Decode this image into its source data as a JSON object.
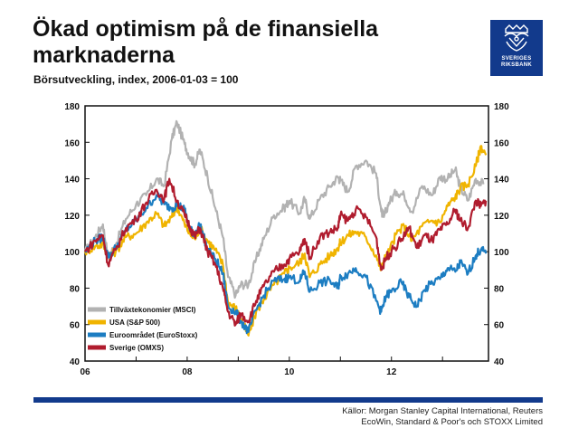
{
  "header": {
    "title": "Ökad optimism på de finansiella marknaderna",
    "subtitle": "Börsutveckling, index, 2006-01-03 = 100"
  },
  "logo": {
    "line1": "SVERIGES",
    "line2": "RIKSBANK",
    "icon": "crown-crest-icon"
  },
  "footer": {
    "source_line1": "Källor: Morgan Stanley Capital International, Reuters",
    "source_line2": "EcoWin, Standard & Poor's och STOXX Limited"
  },
  "chart_data": {
    "type": "line",
    "x_tick_labels": [
      "06",
      "08",
      "10",
      "12"
    ],
    "xlim": [
      2006.0,
      2013.9
    ],
    "ylim": [
      40,
      180
    ],
    "yticks": [
      40,
      60,
      80,
      100,
      120,
      140,
      160,
      180
    ],
    "right_axis": true,
    "grid": false,
    "legend_position": "bottom-left",
    "series": [
      {
        "name": "Tillväxtekonomier (MSCI)",
        "color": "#b2b2b2",
        "points": [
          [
            2006.0,
            100
          ],
          [
            2006.2,
            108
          ],
          [
            2006.35,
            115
          ],
          [
            2006.45,
            97
          ],
          [
            2006.6,
            104
          ],
          [
            2006.8,
            118
          ],
          [
            2007.0,
            126
          ],
          [
            2007.2,
            131
          ],
          [
            2007.4,
            140
          ],
          [
            2007.55,
            136
          ],
          [
            2007.7,
            162
          ],
          [
            2007.8,
            171
          ],
          [
            2007.95,
            159
          ],
          [
            2008.05,
            152
          ],
          [
            2008.15,
            148
          ],
          [
            2008.25,
            156
          ],
          [
            2008.4,
            141
          ],
          [
            2008.55,
            124
          ],
          [
            2008.7,
            108
          ],
          [
            2008.8,
            86
          ],
          [
            2008.95,
            76
          ],
          [
            2009.05,
            82
          ],
          [
            2009.2,
            82
          ],
          [
            2009.35,
            96
          ],
          [
            2009.5,
            107
          ],
          [
            2009.7,
            120
          ],
          [
            2009.9,
            124
          ],
          [
            2010.0,
            128
          ],
          [
            2010.2,
            121
          ],
          [
            2010.3,
            129
          ],
          [
            2010.4,
            118
          ],
          [
            2010.6,
            129
          ],
          [
            2010.8,
            136
          ],
          [
            2010.95,
            141
          ],
          [
            2011.0,
            139
          ],
          [
            2011.15,
            133
          ],
          [
            2011.3,
            147
          ],
          [
            2011.5,
            150
          ],
          [
            2011.7,
            143
          ],
          [
            2011.8,
            122
          ],
          [
            2011.85,
            119
          ],
          [
            2011.95,
            127
          ],
          [
            2012.1,
            133
          ],
          [
            2012.25,
            131
          ],
          [
            2012.4,
            122
          ],
          [
            2012.6,
            136
          ],
          [
            2012.8,
            131
          ],
          [
            2012.95,
            141
          ],
          [
            2013.1,
            140
          ],
          [
            2013.25,
            145
          ],
          [
            2013.35,
            135
          ],
          [
            2013.5,
            128
          ],
          [
            2013.65,
            140
          ],
          [
            2013.8,
            137
          ]
        ]
      },
      {
        "name": "USA (S&P 500)",
        "color": "#f0b400",
        "points": [
          [
            2006.0,
            100
          ],
          [
            2006.2,
            103
          ],
          [
            2006.35,
            104
          ],
          [
            2006.45,
            98
          ],
          [
            2006.6,
            100
          ],
          [
            2006.8,
            108
          ],
          [
            2007.0,
            110
          ],
          [
            2007.2,
            116
          ],
          [
            2007.4,
            121
          ],
          [
            2007.55,
            114
          ],
          [
            2007.7,
            119
          ],
          [
            2007.8,
            125
          ],
          [
            2007.95,
            115
          ],
          [
            2008.05,
            110
          ],
          [
            2008.15,
            107
          ],
          [
            2008.25,
            113
          ],
          [
            2008.4,
            106
          ],
          [
            2008.55,
            101
          ],
          [
            2008.7,
            93
          ],
          [
            2008.8,
            72
          ],
          [
            2008.95,
            69
          ],
          [
            2009.05,
            63
          ],
          [
            2009.2,
            54
          ],
          [
            2009.35,
            67
          ],
          [
            2009.5,
            74
          ],
          [
            2009.7,
            82
          ],
          [
            2009.9,
            88
          ],
          [
            2010.0,
            91
          ],
          [
            2010.2,
            94
          ],
          [
            2010.3,
            99
          ],
          [
            2010.4,
            86
          ],
          [
            2010.6,
            93
          ],
          [
            2010.8,
            98
          ],
          [
            2010.95,
            102
          ],
          [
            2011.0,
            105
          ],
          [
            2011.15,
            109
          ],
          [
            2011.3,
            111
          ],
          [
            2011.5,
            108
          ],
          [
            2011.7,
            98
          ],
          [
            2011.8,
            90
          ],
          [
            2011.85,
            95
          ],
          [
            2011.95,
            100
          ],
          [
            2012.1,
            110
          ],
          [
            2012.25,
            114
          ],
          [
            2012.4,
            106
          ],
          [
            2012.6,
            114
          ],
          [
            2012.8,
            117
          ],
          [
            2012.95,
            116
          ],
          [
            2013.1,
            125
          ],
          [
            2013.25,
            130
          ],
          [
            2013.35,
            135
          ],
          [
            2013.5,
            137
          ],
          [
            2013.65,
            147
          ],
          [
            2013.75,
            158
          ],
          [
            2013.85,
            153
          ]
        ]
      },
      {
        "name": "Euroområdet (EuroStoxx)",
        "color": "#1c7dc2",
        "points": [
          [
            2006.0,
            100
          ],
          [
            2006.2,
            106
          ],
          [
            2006.35,
            108
          ],
          [
            2006.45,
            97
          ],
          [
            2006.6,
            102
          ],
          [
            2006.8,
            112
          ],
          [
            2007.0,
            117
          ],
          [
            2007.2,
            124
          ],
          [
            2007.4,
            131
          ],
          [
            2007.55,
            126
          ],
          [
            2007.7,
            124
          ],
          [
            2007.8,
            126
          ],
          [
            2007.95,
            123
          ],
          [
            2008.05,
            112
          ],
          [
            2008.15,
            110
          ],
          [
            2008.25,
            115
          ],
          [
            2008.4,
            101
          ],
          [
            2008.55,
            96
          ],
          [
            2008.7,
            88
          ],
          [
            2008.8,
            70
          ],
          [
            2008.95,
            67
          ],
          [
            2009.05,
            62
          ],
          [
            2009.2,
            56
          ],
          [
            2009.35,
            68
          ],
          [
            2009.5,
            76
          ],
          [
            2009.7,
            84
          ],
          [
            2009.9,
            85
          ],
          [
            2010.0,
            86
          ],
          [
            2010.2,
            84
          ],
          [
            2010.3,
            89
          ],
          [
            2010.4,
            78
          ],
          [
            2010.6,
            83
          ],
          [
            2010.8,
            84
          ],
          [
            2010.95,
            80
          ],
          [
            2011.0,
            86
          ],
          [
            2011.15,
            88
          ],
          [
            2011.3,
            91
          ],
          [
            2011.5,
            86
          ],
          [
            2011.7,
            73
          ],
          [
            2011.8,
            67
          ],
          [
            2011.9,
            76
          ],
          [
            2012.0,
            78
          ],
          [
            2012.2,
            83
          ],
          [
            2012.35,
            75
          ],
          [
            2012.5,
            70
          ],
          [
            2012.65,
            79
          ],
          [
            2012.8,
            83
          ],
          [
            2012.95,
            85
          ],
          [
            2013.1,
            91
          ],
          [
            2013.25,
            89
          ],
          [
            2013.35,
            94
          ],
          [
            2013.5,
            88
          ],
          [
            2013.65,
            98
          ],
          [
            2013.75,
            101
          ],
          [
            2013.85,
            99
          ]
        ]
      },
      {
        "name": "Sverige (OMXS)",
        "color": "#b01c2e",
        "points": [
          [
            2006.0,
            100
          ],
          [
            2006.2,
            106
          ],
          [
            2006.35,
            109
          ],
          [
            2006.45,
            93
          ],
          [
            2006.6,
            101
          ],
          [
            2006.8,
            113
          ],
          [
            2007.0,
            118
          ],
          [
            2007.2,
            127
          ],
          [
            2007.4,
            134
          ],
          [
            2007.55,
            129
          ],
          [
            2007.65,
            140
          ],
          [
            2007.8,
            128
          ],
          [
            2007.95,
            120
          ],
          [
            2008.05,
            114
          ],
          [
            2008.15,
            108
          ],
          [
            2008.25,
            113
          ],
          [
            2008.4,
            100
          ],
          [
            2008.55,
            93
          ],
          [
            2008.7,
            80
          ],
          [
            2008.8,
            67
          ],
          [
            2008.95,
            60
          ],
          [
            2009.05,
            66
          ],
          [
            2009.2,
            62
          ],
          [
            2009.35,
            73
          ],
          [
            2009.5,
            81
          ],
          [
            2009.7,
            89
          ],
          [
            2009.9,
            93
          ],
          [
            2010.0,
            96
          ],
          [
            2010.2,
            100
          ],
          [
            2010.3,
            107
          ],
          [
            2010.4,
            97
          ],
          [
            2010.6,
            108
          ],
          [
            2010.8,
            111
          ],
          [
            2010.95,
            113
          ],
          [
            2011.0,
            120
          ],
          [
            2011.15,
            117
          ],
          [
            2011.3,
            123
          ],
          [
            2011.5,
            119
          ],
          [
            2011.7,
            108
          ],
          [
            2011.8,
            90
          ],
          [
            2011.9,
            97
          ],
          [
            2012.0,
            100
          ],
          [
            2012.2,
            107
          ],
          [
            2012.35,
            113
          ],
          [
            2012.5,
            102
          ],
          [
            2012.65,
            109
          ],
          [
            2012.8,
            106
          ],
          [
            2012.95,
            112
          ],
          [
            2013.1,
            115
          ],
          [
            2013.25,
            123
          ],
          [
            2013.35,
            117
          ],
          [
            2013.5,
            113
          ],
          [
            2013.65,
            128
          ],
          [
            2013.75,
            125
          ],
          [
            2013.85,
            128
          ]
        ]
      }
    ]
  }
}
